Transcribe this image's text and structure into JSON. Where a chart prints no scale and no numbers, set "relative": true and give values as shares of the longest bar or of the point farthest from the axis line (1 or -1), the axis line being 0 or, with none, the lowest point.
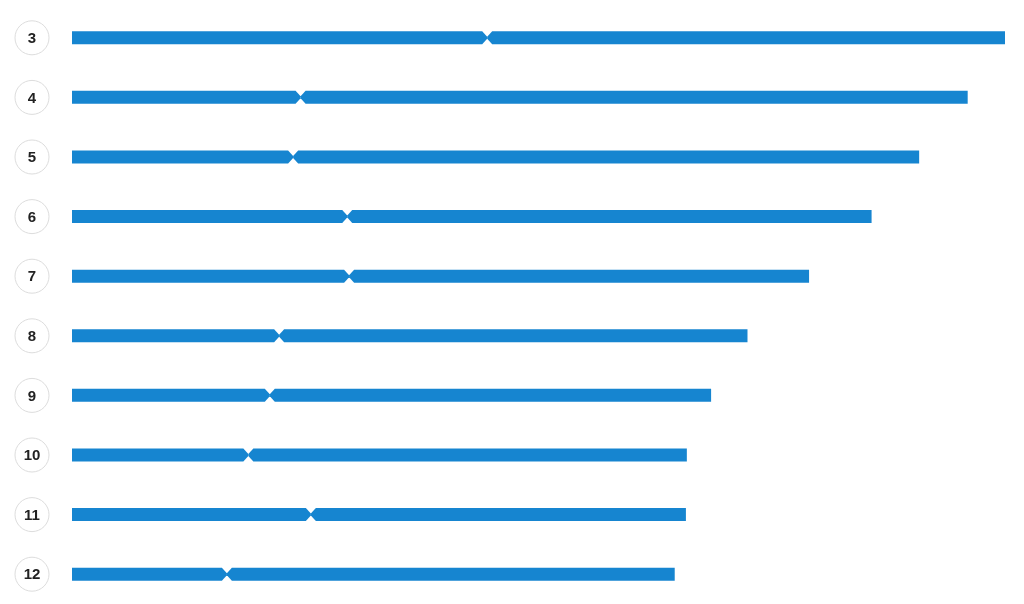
{
  "chart_data": {
    "type": "bar",
    "orientation": "horizontal",
    "stacked": true,
    "relative": true,
    "categories": [
      "3",
      "4",
      "5",
      "6",
      "7",
      "8",
      "9",
      "10",
      "11",
      "12"
    ],
    "series": [
      {
        "color": "#1685d0",
        "values": [
          0.445,
          0.245,
          0.237,
          0.295,
          0.297,
          0.222,
          0.212,
          0.189,
          0.256,
          0.166
        ]
      },
      {
        "color": "#1685d0",
        "values": [
          0.555,
          0.715,
          0.671,
          0.562,
          0.493,
          0.502,
          0.473,
          0.47,
          0.402,
          0.48
        ]
      }
    ]
  }
}
